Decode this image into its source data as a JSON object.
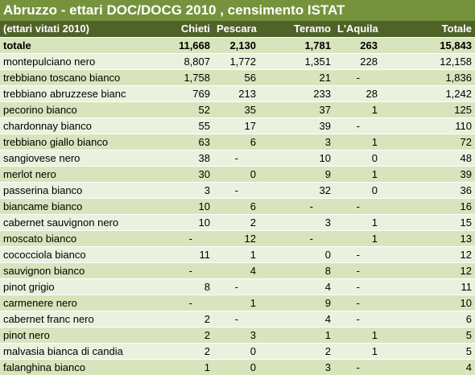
{
  "title": "Abruzzo - ettari DOC/DOCG 2010 , censimento ISTAT",
  "table": {
    "header": [
      "(ettari vitati 2010)",
      "Chieti",
      "Pescara",
      "Teramo",
      "L'Aquila",
      "Totale"
    ],
    "rows": [
      [
        "totale",
        "11,668",
        "2,130",
        "1,781",
        "263",
        "15,843"
      ],
      [
        "montepulciano nero",
        "8,807",
        "1,772",
        "1,351",
        "228",
        "12,158"
      ],
      [
        "trebbiano toscano bianco",
        "1,758",
        "56",
        "21",
        "-",
        "1,836"
      ],
      [
        "trebbiano abruzzese bianc",
        "769",
        "213",
        "233",
        "28",
        "1,242"
      ],
      [
        "pecorino bianco",
        "52",
        "35",
        "37",
        "1",
        "125"
      ],
      [
        "chardonnay bianco",
        "55",
        "17",
        "39",
        "-",
        "110"
      ],
      [
        "trebbiano giallo bianco",
        "63",
        "6",
        "3",
        "1",
        "72"
      ],
      [
        "sangiovese nero",
        "38",
        "-",
        "10",
        "0",
        "48"
      ],
      [
        "merlot nero",
        "30",
        "0",
        "9",
        "1",
        "39"
      ],
      [
        "passerina bianco",
        "3",
        "-",
        "32",
        "0",
        "36"
      ],
      [
        "biancame bianco",
        "10",
        "6",
        "-",
        "-",
        "16"
      ],
      [
        "cabernet sauvignon nero",
        "10",
        "2",
        "3",
        "1",
        "15"
      ],
      [
        "moscato bianco",
        "-",
        "12",
        "-",
        "1",
        "13"
      ],
      [
        "cococciola bianco",
        "11",
        "1",
        "0",
        "-",
        "12"
      ],
      [
        "sauvignon bianco",
        "-",
        "4",
        "8",
        "-",
        "12"
      ],
      [
        "pinot grigio",
        "8",
        "-",
        "4",
        "-",
        "11"
      ],
      [
        "carmenere nero",
        "-",
        "1",
        "9",
        "-",
        "10"
      ],
      [
        "cabernet franc nero",
        "2",
        "-",
        "4",
        "-",
        "6"
      ],
      [
        "pinot nero",
        "2",
        "3",
        "1",
        "1",
        "5"
      ],
      [
        "malvasia bianca di candia",
        "2",
        "0",
        "2",
        "1",
        "5"
      ],
      [
        "falanghina bianco",
        "1",
        "0",
        "3",
        "-",
        "4"
      ]
    ]
  }
}
